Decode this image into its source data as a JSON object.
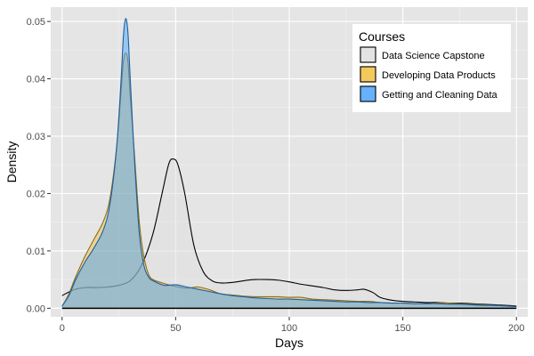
{
  "chart_data": {
    "type": "area",
    "xlabel": "Days",
    "ylabel": "Density",
    "xlim": [
      -5,
      205
    ],
    "ylim": [
      -0.0015,
      0.0525
    ],
    "xticks": [
      {
        "value": 0,
        "label": "0"
      },
      {
        "value": 50,
        "label": "50"
      },
      {
        "value": 100,
        "label": "100"
      },
      {
        "value": 150,
        "label": "150"
      },
      {
        "value": 200,
        "label": "200"
      }
    ],
    "yticks": [
      {
        "value": 0.0,
        "label": "0.00"
      },
      {
        "value": 0.01,
        "label": "0.01"
      },
      {
        "value": 0.02,
        "label": "0.02"
      },
      {
        "value": 0.03,
        "label": "0.03"
      },
      {
        "value": 0.04,
        "label": "0.04"
      },
      {
        "value": 0.05,
        "label": "0.05"
      }
    ],
    "grid": true,
    "legend": {
      "title": "Courses",
      "position": "top-right"
    },
    "series": [
      {
        "name": "Data Science Capstone",
        "color": "#e0e0e0",
        "stroke": "#000000",
        "points": [
          [
            0,
            0.0022
          ],
          [
            5,
            0.0032
          ],
          [
            10,
            0.0036
          ],
          [
            15,
            0.0036
          ],
          [
            20,
            0.0037
          ],
          [
            25,
            0.004
          ],
          [
            30,
            0.0048
          ],
          [
            35,
            0.0075
          ],
          [
            40,
            0.013
          ],
          [
            44,
            0.02
          ],
          [
            47,
            0.0252
          ],
          [
            49,
            0.026
          ],
          [
            51,
            0.025
          ],
          [
            54,
            0.02
          ],
          [
            58,
            0.011
          ],
          [
            62,
            0.0065
          ],
          [
            66,
            0.0048
          ],
          [
            70,
            0.0044
          ],
          [
            75,
            0.0045
          ],
          [
            80,
            0.0048
          ],
          [
            85,
            0.005
          ],
          [
            90,
            0.005
          ],
          [
            95,
            0.0049
          ],
          [
            100,
            0.0046
          ],
          [
            105,
            0.0042
          ],
          [
            110,
            0.0039
          ],
          [
            115,
            0.0036
          ],
          [
            120,
            0.0032
          ],
          [
            125,
            0.0031
          ],
          [
            130,
            0.0032
          ],
          [
            133,
            0.0033
          ],
          [
            137,
            0.0027
          ],
          [
            140,
            0.0019
          ],
          [
            145,
            0.0014
          ],
          [
            150,
            0.0012
          ],
          [
            155,
            0.0011
          ],
          [
            160,
            0.001
          ],
          [
            165,
            0.001
          ],
          [
            170,
            0.0009
          ],
          [
            175,
            0.0009
          ],
          [
            180,
            0.0008
          ],
          [
            185,
            0.0007
          ],
          [
            190,
            0.0006
          ],
          [
            195,
            0.0005
          ],
          [
            200,
            0.0004
          ]
        ]
      },
      {
        "name": "Developing Data Products",
        "color": "#f5c242",
        "stroke": "#8a6d1a",
        "points": [
          [
            0,
            0.0003
          ],
          [
            3,
            0.0025
          ],
          [
            6,
            0.0055
          ],
          [
            10,
            0.009
          ],
          [
            14,
            0.012
          ],
          [
            18,
            0.015
          ],
          [
            21,
            0.019
          ],
          [
            24,
            0.028
          ],
          [
            26,
            0.038
          ],
          [
            27,
            0.043
          ],
          [
            28,
            0.0445
          ],
          [
            29,
            0.043
          ],
          [
            30,
            0.037
          ],
          [
            32,
            0.026
          ],
          [
            34,
            0.015
          ],
          [
            36,
            0.009
          ],
          [
            38,
            0.006
          ],
          [
            40,
            0.005
          ],
          [
            45,
            0.0043
          ],
          [
            50,
            0.0038
          ],
          [
            55,
            0.0035
          ],
          [
            60,
            0.0037
          ],
          [
            65,
            0.0032
          ],
          [
            70,
            0.0025
          ],
          [
            75,
            0.0023
          ],
          [
            80,
            0.0021
          ],
          [
            85,
            0.002
          ],
          [
            90,
            0.002
          ],
          [
            95,
            0.002
          ],
          [
            100,
            0.0019
          ],
          [
            105,
            0.0019
          ],
          [
            110,
            0.0016
          ],
          [
            115,
            0.0015
          ],
          [
            120,
            0.0014
          ],
          [
            125,
            0.0013
          ],
          [
            130,
            0.0012
          ],
          [
            135,
            0.0012
          ],
          [
            140,
            0.001
          ],
          [
            145,
            0.0009
          ],
          [
            150,
            0.0009
          ],
          [
            155,
            0.0008
          ],
          [
            160,
            0.0008
          ],
          [
            165,
            0.0009
          ],
          [
            170,
            0.0009
          ],
          [
            175,
            0.0008
          ],
          [
            180,
            0.0007
          ],
          [
            185,
            0.0006
          ],
          [
            190,
            0.0005
          ],
          [
            195,
            0.0004
          ],
          [
            200,
            0.0003
          ]
        ]
      },
      {
        "name": "Getting and Cleaning Data",
        "color": "#4da6ff",
        "stroke": "#1f5f9e",
        "points": [
          [
            0,
            0.0004
          ],
          [
            3,
            0.0022
          ],
          [
            6,
            0.005
          ],
          [
            10,
            0.008
          ],
          [
            14,
            0.0105
          ],
          [
            18,
            0.0135
          ],
          [
            21,
            0.018
          ],
          [
            24,
            0.028
          ],
          [
            26,
            0.04
          ],
          [
            27,
            0.0475
          ],
          [
            28,
            0.0505
          ],
          [
            29,
            0.048
          ],
          [
            30,
            0.04
          ],
          [
            32,
            0.025
          ],
          [
            34,
            0.013
          ],
          [
            36,
            0.0075
          ],
          [
            38,
            0.0055
          ],
          [
            40,
            0.0048
          ],
          [
            45,
            0.004
          ],
          [
            50,
            0.0041
          ],
          [
            55,
            0.0037
          ],
          [
            60,
            0.0033
          ],
          [
            65,
            0.0029
          ],
          [
            70,
            0.0025
          ],
          [
            75,
            0.0022
          ],
          [
            80,
            0.002
          ],
          [
            85,
            0.0018
          ],
          [
            90,
            0.0017
          ],
          [
            95,
            0.0016
          ],
          [
            100,
            0.0016
          ],
          [
            105,
            0.0015
          ],
          [
            110,
            0.0014
          ],
          [
            115,
            0.0013
          ],
          [
            120,
            0.0012
          ],
          [
            125,
            0.0011
          ],
          [
            130,
            0.0011
          ],
          [
            135,
            0.001
          ],
          [
            140,
            0.001
          ],
          [
            145,
            0.0009
          ],
          [
            150,
            0.0009
          ],
          [
            155,
            0.0008
          ],
          [
            160,
            0.0008
          ],
          [
            165,
            0.0008
          ],
          [
            170,
            0.0007
          ],
          [
            175,
            0.0007
          ],
          [
            180,
            0.0006
          ],
          [
            185,
            0.0005
          ],
          [
            190,
            0.0005
          ],
          [
            195,
            0.0004
          ],
          [
            200,
            0.0003
          ]
        ]
      }
    ]
  }
}
